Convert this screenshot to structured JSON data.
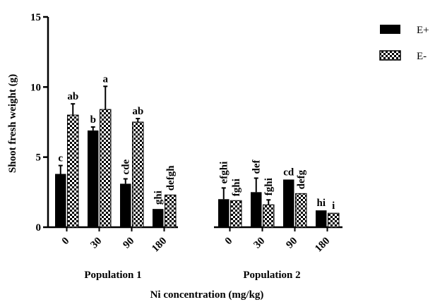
{
  "colors": {
    "e_plus": "#000000",
    "e_minus_fill": "#ffffff",
    "e_minus_pattern": "#000000",
    "axis": "#000000"
  },
  "chart_data": {
    "type": "bar",
    "ylabel": "Shoot fresh weight (g)",
    "xlabel": "Ni concentration (mg/kg)",
    "ylim": [
      0,
      15
    ],
    "yticks": [
      "0",
      "5",
      "10",
      "15"
    ],
    "legend_position": "top-right",
    "groups": [
      {
        "name": "Population 1",
        "categories": [
          "0",
          "30",
          "90",
          "180"
        ],
        "series": [
          {
            "name": "E+",
            "values": [
              3.8,
              6.9,
              3.1,
              1.3
            ],
            "errors": [
              0.6,
              0.25,
              0.35,
              0.0
            ],
            "letters": [
              "c",
              "b",
              "cde",
              "ghi"
            ]
          },
          {
            "name": "E-",
            "values": [
              8.0,
              8.4,
              7.5,
              2.3
            ],
            "errors": [
              0.8,
              1.65,
              0.25,
              0.0
            ],
            "letters": [
              "ab",
              "a",
              "ab",
              "defgh"
            ]
          }
        ]
      },
      {
        "name": "Population 2",
        "categories": [
          "0",
          "30",
          "90",
          "180"
        ],
        "series": [
          {
            "name": "E+",
            "values": [
              2.0,
              2.5,
              3.4,
              1.2
            ],
            "errors": [
              0.8,
              1.0,
              0.0,
              0.0
            ],
            "letters": [
              "efghi",
              "def",
              "cd",
              "hi"
            ]
          },
          {
            "name": "E-",
            "values": [
              1.9,
              1.6,
              2.4,
              1.0
            ],
            "errors": [
              0.0,
              0.35,
              0.0,
              0.0
            ],
            "letters": [
              "fghi",
              "fghi",
              "defg",
              "i"
            ]
          }
        ]
      }
    ]
  }
}
